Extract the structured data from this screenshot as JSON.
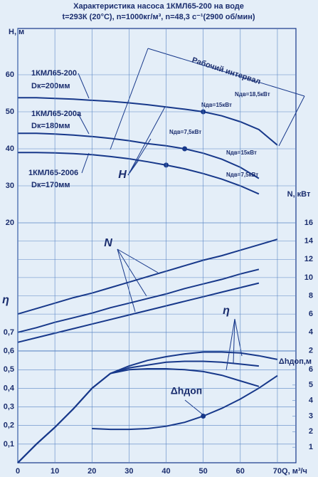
{
  "chart_data": [
    {
      "type": "line",
      "title": "Характеристика насоса 1КМЛ65-200 на воде",
      "subtitle": "t=293К (20°С), n=1000кг/м³, n=48,3 с⁻¹(2900 об/мин)",
      "ylabel": "H, м",
      "xlim": [
        0,
        75
      ],
      "ylim": [
        20,
        70
      ],
      "yticks": [
        20,
        30,
        40,
        50,
        60
      ],
      "grid": true,
      "x": [
        0,
        5,
        10,
        15,
        20,
        25,
        30,
        35,
        40,
        45,
        50,
        55,
        60,
        65,
        70
      ],
      "series": [
        {
          "color": "#17388a",
          "values": [
            53.8,
            53.8,
            53.6,
            53.4,
            53.1,
            52.8,
            52.4,
            51.9,
            51.3,
            50.7,
            50.0,
            48.9,
            47.3,
            45.2,
            41
          ]
        },
        {
          "color": "#17388a",
          "values": [
            44.2,
            44.2,
            44.0,
            43.7,
            43.3,
            42.8,
            42.2,
            41.4,
            40.8,
            40.0,
            38.8,
            37.2,
            35.0,
            32.0,
            null
          ]
        },
        {
          "color": "#17388a",
          "values": [
            39,
            39,
            38.9,
            38.7,
            38.4,
            37.9,
            37.3,
            36.5,
            35.6,
            34.6,
            33.3,
            31.8,
            30.0,
            27.8,
            null
          ]
        }
      ],
      "markers": [
        {
          "x": 50,
          "y": 50
        },
        {
          "x": 45,
          "y": 40
        },
        {
          "x": 40,
          "y": 35.6
        }
      ],
      "annotations": [
        "Рабочий интервал",
        "1КМЛ65-200",
        "Dк=200мм",
        "1КМЛ65-200а",
        "Dк=180мм",
        "1КМЛ65-2006",
        "Dк=170мм",
        "Nдв=15кВт",
        "Nдв=18,5кВт",
        "Nдв=7,5кВт",
        "Nдв=15кВт",
        "Nдв=7,5кВт",
        "H"
      ]
    },
    {
      "type": "line",
      "ylabel": "N, кВт",
      "xlim": [
        0,
        75
      ],
      "ylim": [
        0,
        16
      ],
      "yticks": [
        2,
        4,
        6,
        8,
        10,
        12,
        14,
        16
      ],
      "grid": true,
      "x": [
        0,
        5,
        10,
        15,
        20,
        25,
        30,
        35,
        40,
        45,
        50,
        55,
        60,
        65,
        70
      ],
      "series": [
        {
          "color": "#17388a",
          "values": [
            6.0,
            6.6,
            7.2,
            7.8,
            8.3,
            8.9,
            9.5,
            10.1,
            10.7,
            11.3,
            11.9,
            12.4,
            13.0,
            13.6,
            14.2
          ]
        },
        {
          "color": "#17388a",
          "values": [
            4.0,
            4.5,
            5.1,
            5.6,
            6.1,
            6.7,
            7.2,
            7.7,
            8.2,
            8.8,
            9.3,
            9.8,
            10.4,
            10.9,
            null
          ]
        },
        {
          "color": "#17388a",
          "values": [
            2.9,
            3.4,
            3.9,
            4.4,
            4.9,
            5.4,
            5.9,
            6.4,
            6.9,
            7.4,
            7.9,
            8.4,
            8.9,
            9.4,
            null
          ]
        }
      ],
      "annotations": [
        "N"
      ]
    },
    {
      "type": "line",
      "ylabel": "η",
      "xlabel": "Q, м³/ч",
      "xlim": [
        0,
        75
      ],
      "ylim": [
        0,
        0.7
      ],
      "yticks": [
        {
          "value": 0.1,
          "label": "0,1"
        },
        {
          "value": 0.2,
          "label": "0,2"
        },
        {
          "value": 0.3,
          "label": "0,3"
        },
        {
          "value": 0.4,
          "label": "0,4"
        },
        {
          "value": 0.5,
          "label": "0,5"
        },
        {
          "value": 0.6,
          "label": "0,6"
        },
        {
          "value": 0.7,
          "label": "0,7"
        }
      ],
      "xticks": [
        0,
        10,
        20,
        30,
        40,
        50,
        60,
        70
      ],
      "grid": true,
      "x": [
        0,
        5,
        10,
        15,
        20,
        25,
        30,
        35,
        40,
        45,
        50,
        55,
        60,
        65,
        70
      ],
      "series": [
        {
          "color": "#17388a",
          "values": [
            0,
            0.1,
            0.19,
            0.29,
            0.4,
            0.48,
            0.52,
            0.55,
            0.57,
            0.585,
            0.595,
            0.595,
            0.59,
            0.575,
            0.555
          ]
        },
        {
          "color": "#17388a",
          "values": [
            0,
            0.1,
            0.19,
            0.29,
            0.4,
            0.48,
            0.51,
            0.525,
            0.54,
            0.545,
            0.545,
            0.54,
            0.53,
            0.52,
            null
          ]
        },
        {
          "color": "#17388a",
          "values": [
            0,
            0.1,
            0.19,
            0.29,
            0.4,
            0.48,
            0.5,
            0.505,
            0.505,
            0.5,
            0.49,
            0.47,
            0.44,
            0.41,
            null
          ]
        }
      ],
      "annotations": [
        "η"
      ]
    },
    {
      "type": "line",
      "ylabel": "Δhдоп,м",
      "xlim": [
        0,
        75
      ],
      "ylim": [
        0,
        6
      ],
      "yticks": [
        1,
        2,
        3,
        4,
        5,
        6
      ],
      "grid": false,
      "x": [
        0,
        5,
        10,
        15,
        20,
        25,
        30,
        35,
        40,
        45,
        50,
        55,
        60,
        65,
        70
      ],
      "series": [
        {
          "color": "#17388a",
          "values": [
            null,
            null,
            null,
            null,
            2.2,
            2.15,
            2.15,
            2.2,
            2.35,
            2.6,
            3.0,
            3.5,
            4.1,
            4.8,
            5.6
          ]
        }
      ],
      "markers": [
        {
          "x": 50,
          "y": 3.0
        }
      ],
      "annotations": [
        "Δhдоп"
      ]
    }
  ]
}
